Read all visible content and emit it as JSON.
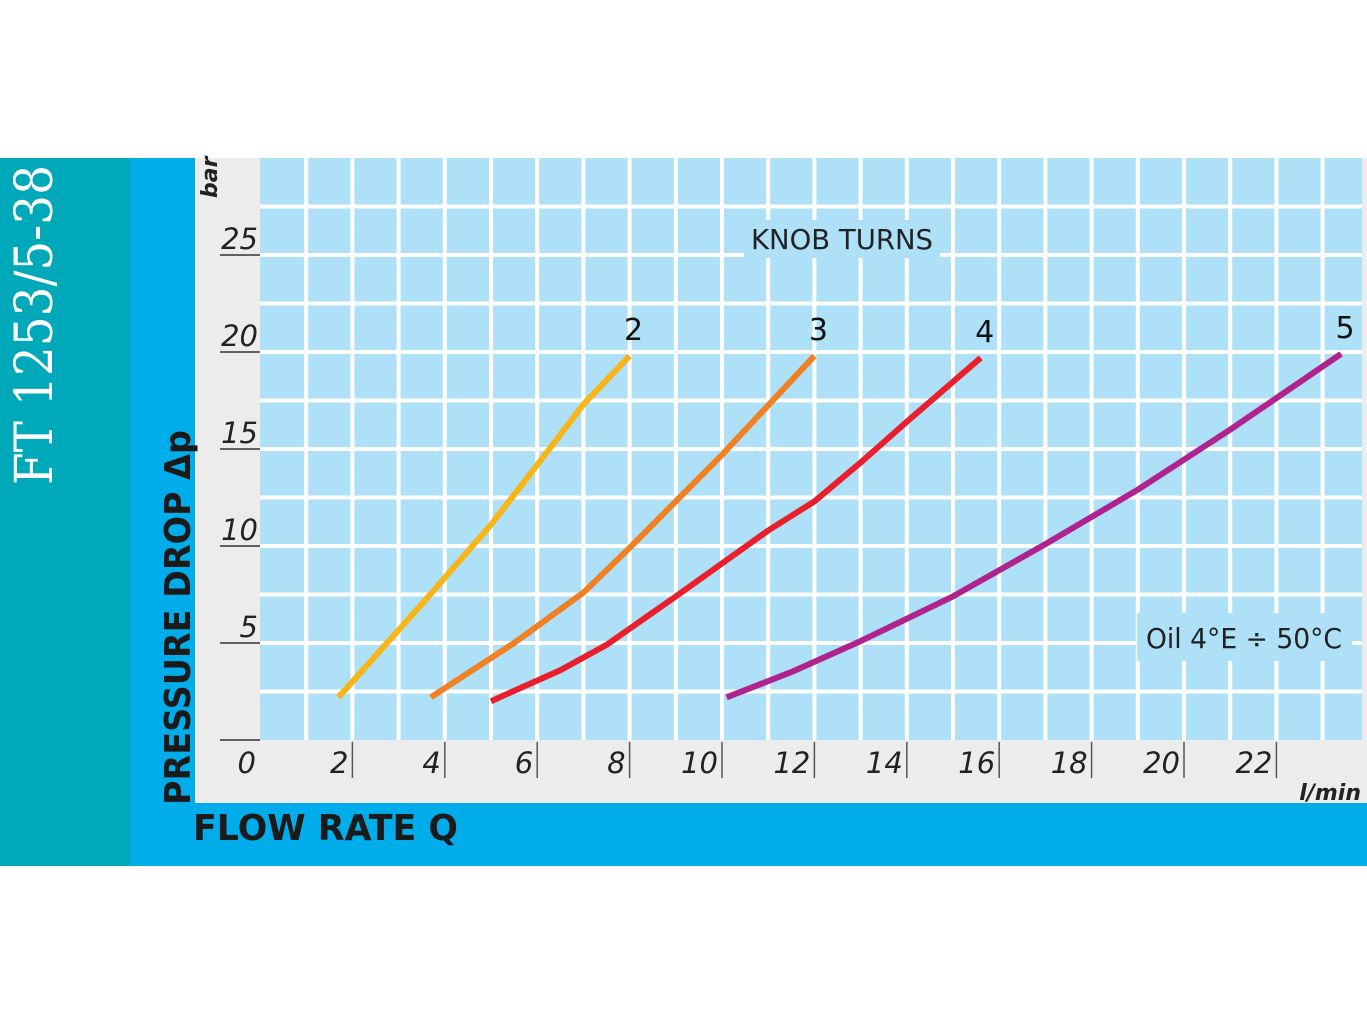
{
  "product_code": "FT 1253/5-38",
  "colors": {
    "teal": "#00a9b9",
    "blue": "#00adea",
    "panel": "#ececec",
    "plot": "#aee0f7",
    "grid": "#ffffff"
  },
  "chart_data": {
    "type": "line",
    "title": "KNOB TURNS",
    "xlabel": "FLOW RATE Q",
    "ylabel": "PRESSURE DROP Δp",
    "x_unit": "l/min",
    "y_unit": "bar",
    "xlim": [
      0,
      24
    ],
    "ylim": [
      0,
      30
    ],
    "x_ticks": [
      "0",
      "2",
      "4",
      "6",
      "8",
      "10",
      "12",
      "14",
      "16",
      "18",
      "20",
      "22"
    ],
    "x_tick_values": [
      0,
      2,
      4,
      6,
      8,
      10,
      12,
      14,
      16,
      18,
      20,
      22
    ],
    "y_ticks": [
      "5",
      "10",
      "15",
      "20",
      "25"
    ],
    "y_tick_values": [
      5,
      10,
      15,
      20,
      25
    ],
    "grid": true,
    "annotation": "Oil 4°E ÷ 50°C",
    "series": [
      {
        "name": "2",
        "color": "#f7b517",
        "points": [
          [
            1.7,
            2.2
          ],
          [
            3.5,
            7.0
          ],
          [
            5.0,
            11.1
          ],
          [
            6.2,
            14.8
          ],
          [
            7.0,
            17.3
          ],
          [
            8.0,
            19.8
          ]
        ]
      },
      {
        "name": "3",
        "color": "#f08021",
        "points": [
          [
            3.7,
            2.2
          ],
          [
            5.5,
            5.0
          ],
          [
            7.0,
            7.6
          ],
          [
            8.0,
            9.9
          ],
          [
            9.0,
            12.3
          ],
          [
            10.0,
            14.7
          ],
          [
            12.0,
            19.8
          ]
        ]
      },
      {
        "name": "4",
        "color": "#e9202c",
        "points": [
          [
            5.0,
            2.0
          ],
          [
            6.5,
            3.6
          ],
          [
            7.5,
            4.9
          ],
          [
            9.0,
            7.4
          ],
          [
            11.0,
            10.8
          ],
          [
            12.0,
            12.3
          ],
          [
            13.0,
            14.3
          ],
          [
            14.0,
            16.4
          ],
          [
            15.6,
            19.7
          ]
        ]
      },
      {
        "name": "5",
        "color": "#b0238f",
        "points": [
          [
            10.1,
            2.2
          ],
          [
            11.5,
            3.5
          ],
          [
            13.0,
            5.1
          ],
          [
            15.0,
            7.4
          ],
          [
            17.0,
            10.1
          ],
          [
            19.0,
            12.9
          ],
          [
            21.0,
            16.0
          ],
          [
            23.4,
            19.9
          ]
        ]
      }
    ]
  }
}
